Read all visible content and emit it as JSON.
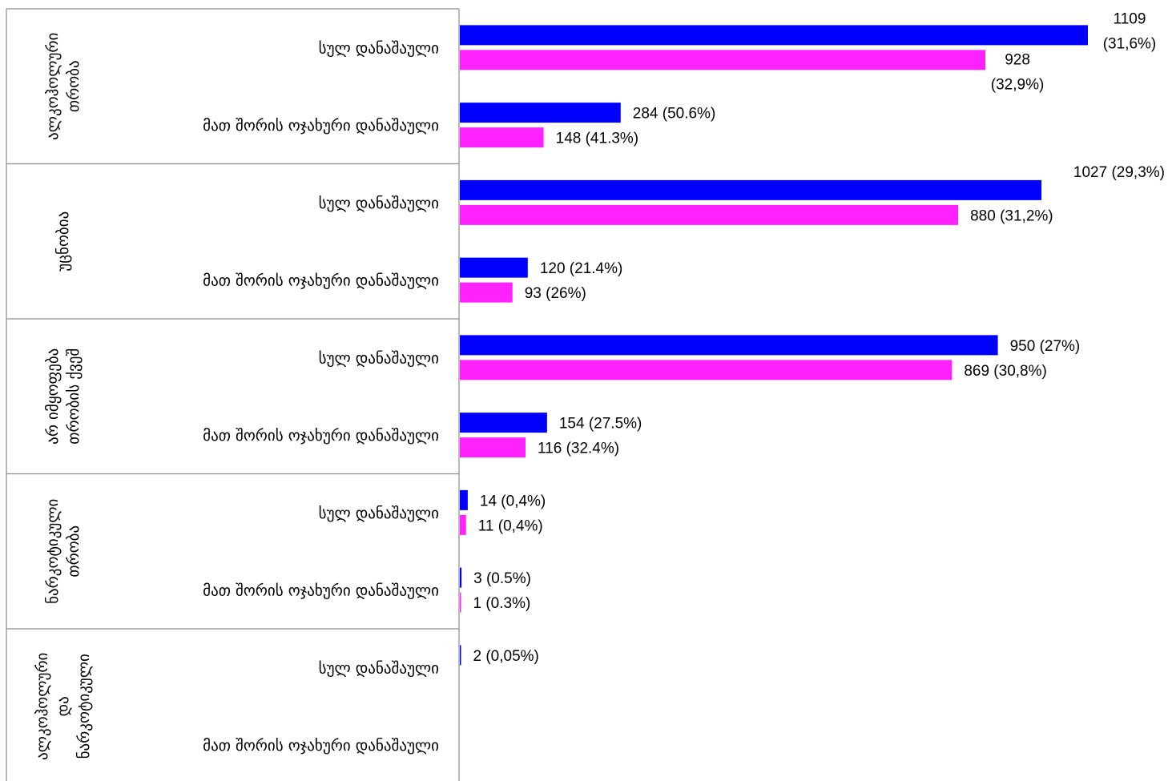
{
  "chart_data": {
    "type": "bar",
    "orientation": "horizontal",
    "title": "",
    "xlabel": "",
    "ylabel": "",
    "xlim": [
      0,
      1109
    ],
    "grid": false,
    "legend": "none",
    "series_colors": [
      "#0000ff",
      "#ff22ff"
    ],
    "groups": [
      {
        "label_lines": [
          "ალკოჰოლური",
          "თრობა"
        ],
        "rows": [
          {
            "category": "სულ დანაშაული",
            "bars": [
              {
                "value": 1109,
                "label_lines": [
                  "1109",
                  "(31,6%)"
                ]
              },
              {
                "value": 928,
                "label_lines": [
                  "928",
                  "(32,9%)"
                ]
              }
            ]
          },
          {
            "category": "მათ შორის ოჯახური დანაშაული",
            "bars": [
              {
                "value": 284,
                "label_lines": [
                  "284 (50.6%)"
                ]
              },
              {
                "value": 148,
                "label_lines": [
                  "148 (41.3%)"
                ]
              }
            ]
          }
        ]
      },
      {
        "label_lines": [
          "უცნობია"
        ],
        "rows": [
          {
            "category": "სულ დანაშაული",
            "bars": [
              {
                "value": 1027,
                "label_lines": [
                  "1027 (29,3%)"
                ]
              },
              {
                "value": 880,
                "label_lines": [
                  "880 (31,2%)"
                ]
              }
            ]
          },
          {
            "category": "მათ შორის ოჯახური დანაშაული",
            "bars": [
              {
                "value": 120,
                "label_lines": [
                  "120 (21.4%)"
                ]
              },
              {
                "value": 93,
                "label_lines": [
                  "93 (26%)"
                ]
              }
            ]
          }
        ]
      },
      {
        "label_lines": [
          "არ იმყოფება",
          "თრობის ქვეშ"
        ],
        "rows": [
          {
            "category": "სულ დანაშაული",
            "bars": [
              {
                "value": 950,
                "label_lines": [
                  "950 (27%)"
                ]
              },
              {
                "value": 869,
                "label_lines": [
                  "869 (30,8%)"
                ]
              }
            ]
          },
          {
            "category": "მათ შორის ოჯახური დანაშაული",
            "bars": [
              {
                "value": 154,
                "label_lines": [
                  "154 (27.5%)"
                ]
              },
              {
                "value": 116,
                "label_lines": [
                  "116 (32.4%)"
                ]
              }
            ]
          }
        ]
      },
      {
        "label_lines": [
          "ნარკოტიკული",
          "თრობა"
        ],
        "rows": [
          {
            "category": "სულ დანაშაული",
            "bars": [
              {
                "value": 14,
                "label_lines": [
                  "14 (0,4%)"
                ]
              },
              {
                "value": 11,
                "label_lines": [
                  "11 (0,4%)"
                ]
              }
            ]
          },
          {
            "category": "მათ შორის ოჯახური დანაშაული",
            "bars": [
              {
                "value": 3,
                "label_lines": [
                  "3 (0.5%)"
                ]
              },
              {
                "value": 1,
                "label_lines": [
                  "1 (0.3%)"
                ]
              }
            ]
          }
        ]
      },
      {
        "label_lines": [
          "ალკოჰოლური",
          "და",
          "ნარკოტიკული"
        ],
        "rows": [
          {
            "category": "სულ დანაშაული",
            "bars": [
              {
                "value": 2,
                "label_lines": [
                  "2 (0,05%)"
                ]
              },
              {
                "value": null,
                "label_lines": []
              }
            ]
          },
          {
            "category": "მათ შორის ოჯახური დანაშაული",
            "bars": [
              {
                "value": null,
                "label_lines": []
              },
              {
                "value": null,
                "label_lines": []
              }
            ]
          }
        ]
      }
    ]
  }
}
